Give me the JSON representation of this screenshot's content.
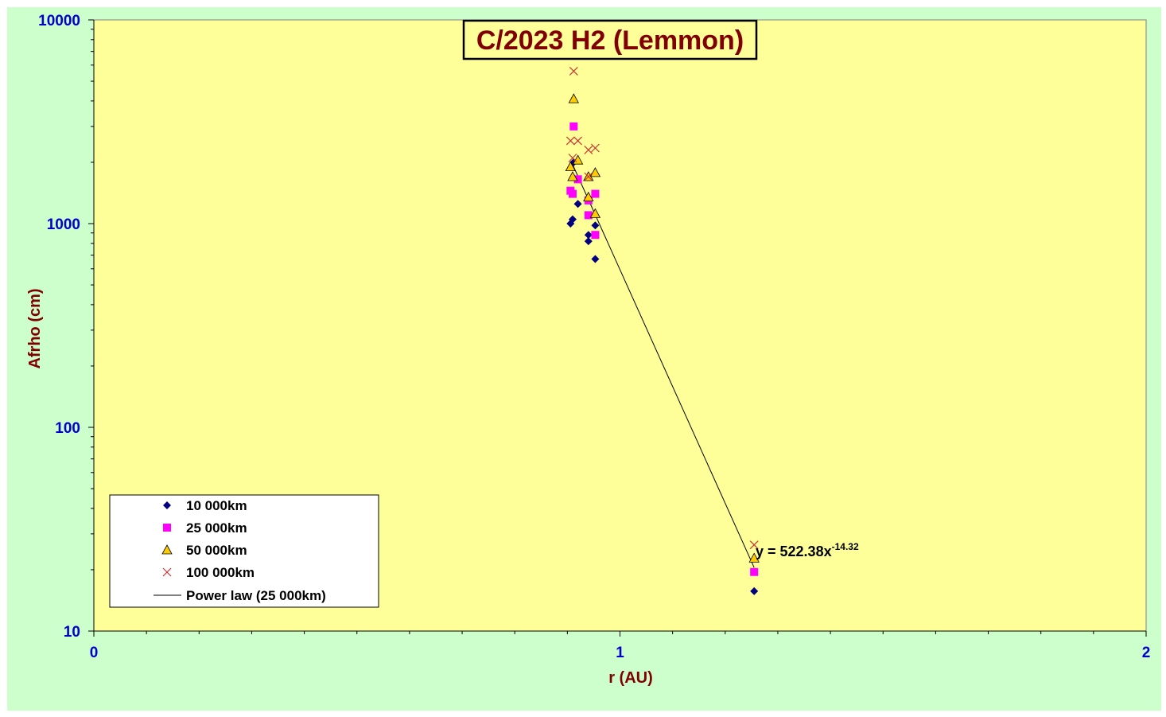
{
  "chart_data": {
    "type": "scatter",
    "title": "C/2023 H2 (Lemmon)",
    "xlabel": "r (AU)",
    "ylabel": "Afrho (cm)",
    "xlim": [
      0,
      2
    ],
    "ylim": [
      10,
      10000
    ],
    "yscale": "log",
    "x_ticks": [
      "0",
      "1",
      "2"
    ],
    "y_ticks": [
      "10",
      "100",
      "1000",
      "10000"
    ],
    "grid": false,
    "legend_position": "bottom-left",
    "series": [
      {
        "name": "10 000km",
        "marker": "diamond",
        "color": "#000080",
        "points": [
          [
            0.906,
            1000
          ],
          [
            0.91,
            1050
          ],
          [
            0.912,
            2000
          ],
          [
            0.92,
            1250
          ],
          [
            0.94,
            820
          ],
          [
            0.94,
            880
          ],
          [
            0.953,
            980
          ],
          [
            0.953,
            670
          ],
          [
            1.255,
            15.7
          ]
        ]
      },
      {
        "name": "25 000km",
        "marker": "square",
        "color": "#ff00ff",
        "points": [
          [
            0.906,
            1450
          ],
          [
            0.91,
            1400
          ],
          [
            0.912,
            3000
          ],
          [
            0.92,
            1650
          ],
          [
            0.94,
            1100
          ],
          [
            0.94,
            1300
          ],
          [
            0.953,
            1400
          ],
          [
            0.953,
            880
          ],
          [
            1.255,
            19.5
          ]
        ]
      },
      {
        "name": "50 000km",
        "marker": "triangle",
        "color": "#ffcc00",
        "points": [
          [
            0.906,
            1900
          ],
          [
            0.91,
            1700
          ],
          [
            0.912,
            4100
          ],
          [
            0.92,
            2050
          ],
          [
            0.94,
            1700
          ],
          [
            0.94,
            1350
          ],
          [
            0.953,
            1780
          ],
          [
            0.953,
            1120
          ],
          [
            1.255,
            22.8
          ]
        ]
      },
      {
        "name": "100 000km",
        "marker": "x",
        "color": "#cc3333",
        "points": [
          [
            0.906,
            2550
          ],
          [
            0.91,
            2100
          ],
          [
            0.912,
            5600
          ],
          [
            0.92,
            2550
          ],
          [
            0.94,
            2300
          ],
          [
            0.94,
            1700
          ],
          [
            0.953,
            2350
          ],
          [
            1.255,
            26.5
          ]
        ]
      }
    ],
    "trendline": {
      "name": "Power law (25 000km)",
      "x": [
        0.91,
        1.255
      ],
      "y": [
        1950,
        20.5
      ]
    },
    "annotation": {
      "text_main": "y = 522.38x",
      "text_exp": "-14.32"
    }
  }
}
